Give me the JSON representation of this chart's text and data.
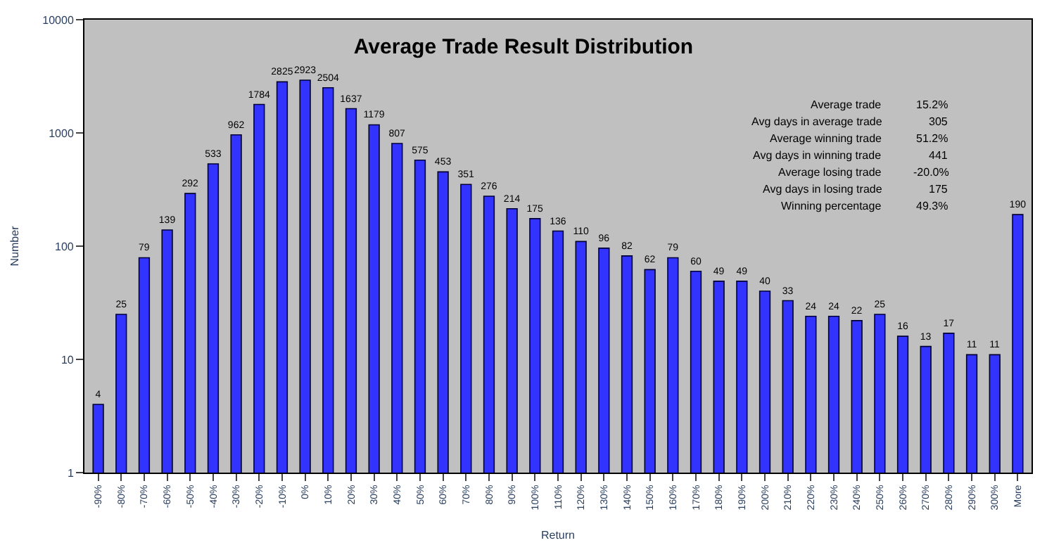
{
  "chart_data": {
    "type": "bar",
    "title": "Average Trade Result Distribution",
    "xlabel": "Return",
    "ylabel": "Number",
    "categories": [
      "-90%",
      "-80%",
      "-70%",
      "-60%",
      "-50%",
      "-40%",
      "-30%",
      "-20%",
      "-10%",
      "0%",
      "10%",
      "20%",
      "30%",
      "40%",
      "50%",
      "60%",
      "70%",
      "80%",
      "90%",
      "100%",
      "110%",
      "120%",
      "130%",
      "140%",
      "150%",
      "160%",
      "170%",
      "180%",
      "190%",
      "200%",
      "210%",
      "220%",
      "230%",
      "240%",
      "250%",
      "260%",
      "270%",
      "280%",
      "290%",
      "300%",
      "More"
    ],
    "values": [
      4,
      25,
      79,
      139,
      292,
      533,
      962,
      1784,
      2825,
      2923,
      2504,
      1637,
      1179,
      807,
      575,
      453,
      351,
      276,
      214,
      175,
      136,
      110,
      96,
      82,
      62,
      79,
      60,
      49,
      49,
      40,
      33,
      24,
      24,
      22,
      25,
      16,
      13,
      17,
      11,
      11,
      190
    ],
    "color": "#3333ff",
    "log": true,
    "ylim": [
      1,
      10000
    ],
    "yticks": [
      1,
      10,
      100,
      1000,
      10000
    ],
    "grid": false,
    "legend": false,
    "data_labels": true,
    "annotations": [
      "Average trade",
      "15.2%",
      "Avg days in average trade",
      "305",
      "Average winning trade",
      "51.2%",
      "Avg days in winning trade",
      "441",
      "Average losing trade",
      "-20.0%",
      "Avg days in losing trade",
      "175",
      "Winning percentage",
      "49.3%"
    ]
  }
}
